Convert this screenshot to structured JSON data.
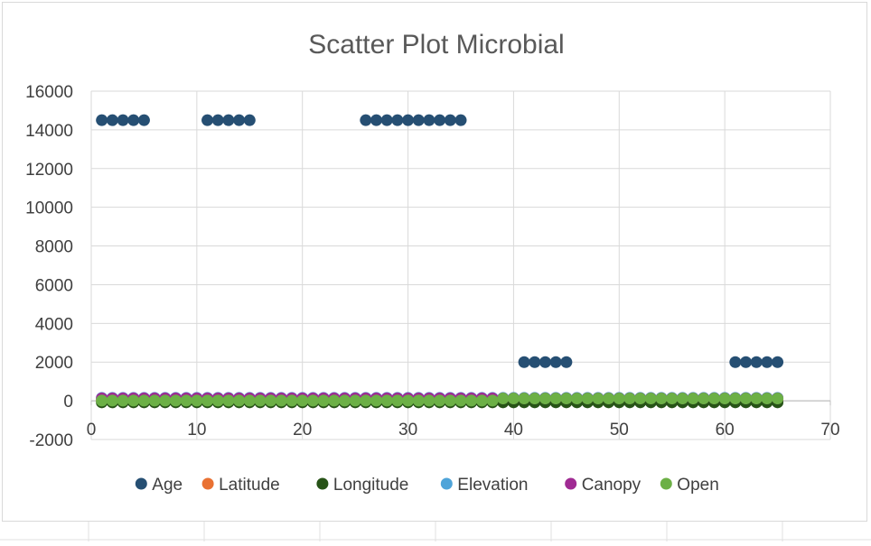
{
  "chart_data": {
    "type": "scatter",
    "title": "Scatter Plot Microbial",
    "xlabel": "",
    "ylabel": "",
    "xlim": [
      0,
      70
    ],
    "ylim": [
      -2000,
      16000
    ],
    "x_ticks": [
      0,
      10,
      20,
      30,
      40,
      50,
      60,
      70
    ],
    "y_ticks": [
      -2000,
      0,
      2000,
      4000,
      6000,
      8000,
      10000,
      12000,
      14000,
      16000
    ],
    "grid": true,
    "legend_position": "bottom",
    "series": [
      {
        "name": "Age",
        "color": "#264F73",
        "x": [
          1,
          2,
          3,
          4,
          5,
          11,
          12,
          13,
          14,
          15,
          26,
          27,
          28,
          29,
          30,
          31,
          32,
          33,
          34,
          35,
          41,
          42,
          43,
          44,
          45,
          61,
          62,
          63,
          64,
          65
        ],
        "y": [
          14500,
          14500,
          14500,
          14500,
          14500,
          14500,
          14500,
          14500,
          14500,
          14500,
          14500,
          14500,
          14500,
          14500,
          14500,
          14500,
          14500,
          14500,
          14500,
          14500,
          2000,
          2000,
          2000,
          2000,
          2000,
          2000,
          2000,
          2000,
          2000,
          2000
        ]
      },
      {
        "name": "Latitude",
        "color": "#E97132",
        "x": [
          1,
          2,
          3,
          4,
          5,
          6,
          7,
          8,
          9,
          10,
          11,
          12,
          13,
          14,
          15,
          16,
          17,
          18,
          19,
          20,
          21,
          22,
          23,
          24,
          25,
          26,
          27,
          28,
          29,
          30,
          31,
          32,
          33,
          34,
          35,
          36,
          37,
          38,
          39,
          40,
          41,
          42,
          43,
          44,
          45,
          46,
          47,
          48,
          49,
          50,
          51,
          52,
          53,
          54,
          55,
          56,
          57,
          58,
          59,
          60,
          61,
          62,
          63,
          64,
          65
        ],
        "y": [
          42,
          42,
          42,
          42,
          42,
          42,
          42,
          42,
          42,
          42,
          42,
          42,
          42,
          42,
          42,
          42,
          42,
          42,
          42,
          42,
          42,
          42,
          42,
          42,
          42,
          42,
          42,
          42,
          42,
          42,
          42,
          42,
          42,
          42,
          42,
          42,
          42,
          42,
          42,
          42,
          42,
          42,
          42,
          42,
          42,
          42,
          42,
          42,
          42,
          42,
          42,
          42,
          42,
          42,
          42,
          42,
          42,
          42,
          42,
          42,
          42,
          42,
          42,
          42,
          42
        ]
      },
      {
        "name": "Longitude",
        "color": "#275317",
        "x": [
          1,
          2,
          3,
          4,
          5,
          6,
          7,
          8,
          9,
          10,
          11,
          12,
          13,
          14,
          15,
          16,
          17,
          18,
          19,
          20,
          21,
          22,
          23,
          24,
          25,
          26,
          27,
          28,
          29,
          30,
          31,
          32,
          33,
          34,
          35,
          36,
          37,
          38,
          39,
          40,
          41,
          42,
          43,
          44,
          45,
          46,
          47,
          48,
          49,
          50,
          51,
          52,
          53,
          54,
          55,
          56,
          57,
          58,
          59,
          60,
          61,
          62,
          63,
          64,
          65
        ],
        "y": [
          -80,
          -80,
          -80,
          -80,
          -80,
          -80,
          -80,
          -80,
          -80,
          -80,
          -80,
          -80,
          -80,
          -80,
          -80,
          -80,
          -80,
          -80,
          -80,
          -80,
          -80,
          -80,
          -80,
          -80,
          -80,
          -80,
          -80,
          -80,
          -80,
          -80,
          -80,
          -80,
          -80,
          -80,
          -80,
          -80,
          -80,
          -80,
          -80,
          -80,
          -80,
          -80,
          -80,
          -80,
          -80,
          -80,
          -80,
          -80,
          -80,
          -80,
          -80,
          -80,
          -80,
          -80,
          -80,
          -80,
          -80,
          -80,
          -80,
          -80,
          -80,
          -80,
          -80,
          -80,
          -80
        ]
      },
      {
        "name": "Elevation",
        "color": "#4EA4D9",
        "x": [
          1,
          2,
          3,
          4,
          5,
          6,
          7,
          8,
          9,
          10,
          11,
          12,
          13,
          14,
          15,
          16,
          17,
          18,
          19,
          20,
          21,
          22,
          23,
          24,
          25,
          26,
          27,
          28,
          29,
          30,
          31,
          32,
          33,
          34,
          35,
          36,
          37,
          38,
          39,
          40,
          41,
          42,
          43,
          44,
          45,
          46,
          47,
          48,
          49,
          50,
          51,
          52,
          53,
          54,
          55,
          56,
          57,
          58,
          59,
          60,
          61,
          62,
          63,
          64,
          65
        ],
        "y": [
          150,
          150,
          150,
          150,
          150,
          150,
          150,
          150,
          150,
          150,
          150,
          150,
          150,
          150,
          150,
          150,
          150,
          150,
          150,
          150,
          150,
          150,
          150,
          150,
          150,
          150,
          150,
          150,
          150,
          150,
          150,
          150,
          150,
          150,
          150,
          150,
          150,
          150,
          150,
          150,
          150,
          150,
          150,
          150,
          150,
          150,
          150,
          150,
          150,
          150,
          150,
          150,
          150,
          150,
          150,
          150,
          150,
          150,
          150,
          150,
          150,
          150,
          150,
          150,
          150
        ]
      },
      {
        "name": "Canopy",
        "color": "#A02B93",
        "x": [
          1,
          2,
          3,
          4,
          5,
          6,
          7,
          8,
          9,
          10,
          11,
          12,
          13,
          14,
          15,
          16,
          17,
          18,
          19,
          20,
          21,
          22,
          23,
          24,
          25,
          26,
          27,
          28,
          29,
          30,
          31,
          32,
          33,
          34,
          35,
          36,
          37,
          38,
          39,
          40,
          41,
          42,
          43,
          44,
          45,
          46,
          47,
          48,
          49,
          50,
          51,
          52,
          53,
          54,
          55,
          56,
          57,
          58,
          59,
          60,
          61,
          62,
          63,
          64,
          65
        ],
        "y": [
          130,
          130,
          130,
          130,
          130,
          130,
          130,
          130,
          130,
          130,
          130,
          130,
          130,
          130,
          130,
          130,
          130,
          130,
          130,
          130,
          130,
          130,
          130,
          130,
          130,
          130,
          130,
          130,
          130,
          130,
          130,
          130,
          130,
          130,
          130,
          130,
          130,
          130,
          130,
          130,
          130,
          130,
          130,
          130,
          130,
          130,
          130,
          130,
          130,
          130,
          130,
          130,
          130,
          130,
          130,
          130,
          130,
          130,
          130,
          130,
          130,
          130,
          130,
          130,
          130
        ]
      },
      {
        "name": "Open",
        "color": "#6CB046",
        "x": [
          1,
          2,
          3,
          4,
          5,
          6,
          7,
          8,
          9,
          10,
          11,
          12,
          13,
          14,
          15,
          16,
          17,
          18,
          19,
          20,
          21,
          22,
          23,
          24,
          25,
          26,
          27,
          28,
          29,
          30,
          31,
          32,
          33,
          34,
          35,
          36,
          37,
          38,
          39,
          40,
          41,
          42,
          43,
          44,
          45,
          46,
          47,
          48,
          49,
          50,
          51,
          52,
          53,
          54,
          55,
          56,
          57,
          58,
          59,
          60,
          61,
          62,
          63,
          64,
          65
        ],
        "y": [
          10,
          10,
          10,
          10,
          10,
          10,
          10,
          10,
          10,
          10,
          10,
          10,
          10,
          10,
          10,
          10,
          10,
          10,
          10,
          10,
          10,
          10,
          10,
          10,
          10,
          10,
          10,
          10,
          10,
          10,
          10,
          10,
          10,
          10,
          10,
          10,
          10,
          10,
          120,
          120,
          120,
          120,
          120,
          120,
          120,
          120,
          120,
          120,
          120,
          120,
          120,
          120,
          120,
          120,
          120,
          120,
          120,
          120,
          120,
          120,
          120,
          120,
          120,
          120,
          120
        ]
      }
    ]
  }
}
